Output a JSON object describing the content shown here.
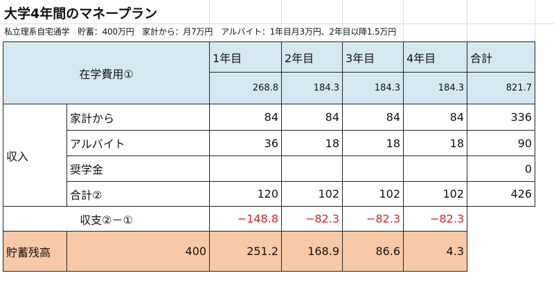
{
  "title": "大学4年間のマネープラン",
  "subtitle": "私立理系自宅通学　貯蓄：400万円　家計から：月7万円　アルバイト：1年目月3万円、2年目以降1.5万円",
  "header": {
    "row_label": "在学費用①",
    "columns": [
      "1年目",
      "2年目",
      "3年目",
      "4年目",
      "合計"
    ],
    "costs": [
      "268.8",
      "184.3",
      "184.3",
      "184.3",
      "821.7"
    ]
  },
  "income": {
    "group_label": "収入",
    "rows": [
      {
        "label": "家計から",
        "values": [
          "84",
          "84",
          "84",
          "84",
          "336"
        ]
      },
      {
        "label": "アルバイト",
        "values": [
          "36",
          "18",
          "18",
          "18",
          "90"
        ]
      },
      {
        "label": "奨学金",
        "values": [
          "",
          "",
          "",
          "",
          "0"
        ]
      },
      {
        "label": "合計②",
        "values": [
          "120",
          "102",
          "102",
          "102",
          "426"
        ]
      }
    ]
  },
  "balance": {
    "label": "収支②－①",
    "values": [
      "−148.8",
      "−82.3",
      "−82.3",
      "−82.3"
    ]
  },
  "savings": {
    "label": "貯蓄残高",
    "initial": "400",
    "values": [
      "251.2",
      "168.9",
      "86.6",
      "4.3"
    ]
  }
}
